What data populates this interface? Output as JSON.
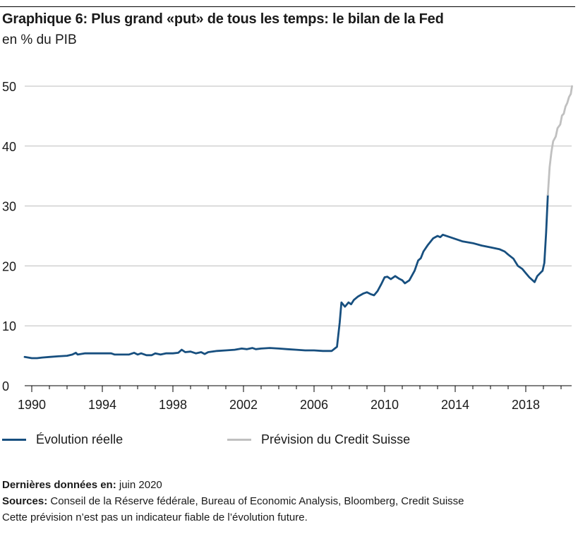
{
  "header": {
    "title": "Graphique 6: Plus grand «put» de tous les temps: le bilan de la Fed",
    "subtitle": "en % du PIB"
  },
  "legend": {
    "actual_label": "Évolution réelle",
    "forecast_label": "Prévision du Credit Suisse"
  },
  "footer": {
    "last_data_label": "Dernières données en:",
    "last_data_value": " juin 2020",
    "sources_label": "Sources:",
    "sources_value": " Conseil de la Réserve fédérale, Bureau of Economic Analysis, Bloomberg, Credit Suisse",
    "disclaimer": "Cette prévision n’est pas un indicateur fiable de l’évolution future."
  },
  "colors": {
    "actual": "#174f7f",
    "forecast": "#c0c0c0",
    "grid": "#bdbdbd"
  },
  "chart_data": {
    "type": "line",
    "title": "Graphique 6: Plus grand «put» de tous les temps: le bilan de la Fed",
    "ylabel": "en % du PIB",
    "xlim": [
      1989.6,
      2020.6
    ],
    "ylim": [
      0,
      50
    ],
    "yticks": [
      0,
      10,
      20,
      30,
      40,
      50
    ],
    "xticks": [
      "1990",
      "1994",
      "1998",
      "2002",
      "2006",
      "2010",
      "2014",
      "2018"
    ],
    "grid": "horizontal",
    "legend_position": "bottom",
    "series": [
      {
        "name": "Évolution réelle",
        "color": "#174f7f",
        "points": [
          [
            1989.6,
            4.8
          ],
          [
            1989.8,
            4.7
          ],
          [
            1990.0,
            4.6
          ],
          [
            1990.3,
            4.6
          ],
          [
            1990.6,
            4.7
          ],
          [
            1991.0,
            4.8
          ],
          [
            1991.5,
            4.9
          ],
          [
            1992.0,
            5.0
          ],
          [
            1992.3,
            5.2
          ],
          [
            1992.5,
            5.5
          ],
          [
            1992.6,
            5.2
          ],
          [
            1993.0,
            5.4
          ],
          [
            1993.5,
            5.4
          ],
          [
            1994.0,
            5.4
          ],
          [
            1994.5,
            5.4
          ],
          [
            1994.7,
            5.2
          ],
          [
            1995.0,
            5.2
          ],
          [
            1995.5,
            5.2
          ],
          [
            1995.8,
            5.5
          ],
          [
            1996.0,
            5.2
          ],
          [
            1996.2,
            5.4
          ],
          [
            1996.5,
            5.1
          ],
          [
            1996.8,
            5.1
          ],
          [
            1997.0,
            5.4
          ],
          [
            1997.3,
            5.2
          ],
          [
            1997.6,
            5.4
          ],
          [
            1998.0,
            5.4
          ],
          [
            1998.3,
            5.5
          ],
          [
            1998.5,
            6.0
          ],
          [
            1998.7,
            5.6
          ],
          [
            1999.0,
            5.7
          ],
          [
            1999.3,
            5.4
          ],
          [
            1999.6,
            5.6
          ],
          [
            1999.8,
            5.3
          ],
          [
            2000.0,
            5.6
          ],
          [
            2000.5,
            5.8
          ],
          [
            2001.0,
            5.9
          ],
          [
            2001.5,
            6.0
          ],
          [
            2001.9,
            6.2
          ],
          [
            2002.2,
            6.1
          ],
          [
            2002.5,
            6.3
          ],
          [
            2002.7,
            6.1
          ],
          [
            2003.0,
            6.2
          ],
          [
            2003.5,
            6.3
          ],
          [
            2004.0,
            6.2
          ],
          [
            2004.5,
            6.1
          ],
          [
            2005.0,
            6.0
          ],
          [
            2005.5,
            5.9
          ],
          [
            2006.0,
            5.9
          ],
          [
            2006.5,
            5.8
          ],
          [
            2007.0,
            5.8
          ],
          [
            2007.3,
            6.5
          ],
          [
            2007.45,
            10.5
          ],
          [
            2007.55,
            13.9
          ],
          [
            2007.75,
            13.2
          ],
          [
            2007.95,
            13.9
          ],
          [
            2008.1,
            13.6
          ],
          [
            2008.25,
            14.3
          ],
          [
            2008.5,
            14.9
          ],
          [
            2008.8,
            15.4
          ],
          [
            2009.0,
            15.6
          ],
          [
            2009.2,
            15.3
          ],
          [
            2009.4,
            15.1
          ],
          [
            2009.6,
            15.8
          ],
          [
            2009.8,
            16.9
          ],
          [
            2010.0,
            18.1
          ],
          [
            2010.15,
            18.2
          ],
          [
            2010.35,
            17.8
          ],
          [
            2010.6,
            18.3
          ],
          [
            2010.8,
            17.9
          ],
          [
            2011.0,
            17.6
          ],
          [
            2011.15,
            17.1
          ],
          [
            2011.4,
            17.6
          ],
          [
            2011.7,
            19.2
          ],
          [
            2011.9,
            20.9
          ],
          [
            2012.05,
            21.3
          ],
          [
            2012.2,
            22.4
          ],
          [
            2012.45,
            23.5
          ],
          [
            2012.75,
            24.6
          ],
          [
            2013.0,
            25.0
          ],
          [
            2013.15,
            24.8
          ],
          [
            2013.3,
            25.2
          ],
          [
            2013.6,
            24.9
          ],
          [
            2014.0,
            24.5
          ],
          [
            2014.4,
            24.1
          ],
          [
            2015.0,
            23.8
          ],
          [
            2015.5,
            23.4
          ],
          [
            2016.0,
            23.1
          ],
          [
            2016.5,
            22.8
          ],
          [
            2016.8,
            22.4
          ],
          [
            2017.0,
            21.9
          ],
          [
            2017.3,
            21.2
          ],
          [
            2017.55,
            20.0
          ],
          [
            2017.8,
            19.5
          ],
          [
            2018.0,
            18.8
          ],
          [
            2018.2,
            18.1
          ],
          [
            2018.5,
            17.3
          ],
          [
            2018.65,
            18.3
          ],
          [
            2018.85,
            18.9
          ],
          [
            2018.95,
            19.2
          ],
          [
            2019.05,
            20.5
          ],
          [
            2019.15,
            25.5
          ],
          [
            2019.25,
            31.9
          ]
        ]
      },
      {
        "name": "Prévision du Credit Suisse",
        "color": "#c0c0c0",
        "points": [
          [
            2019.25,
            31.9
          ],
          [
            2019.35,
            36.5
          ],
          [
            2019.45,
            39.0
          ],
          [
            2019.55,
            40.8
          ],
          [
            2019.7,
            41.6
          ],
          [
            2019.8,
            43.0
          ],
          [
            2019.95,
            43.6
          ],
          [
            2020.05,
            45.1
          ],
          [
            2020.15,
            45.4
          ],
          [
            2020.25,
            46.6
          ],
          [
            2020.35,
            47.2
          ],
          [
            2020.45,
            48.2
          ],
          [
            2020.55,
            48.7
          ],
          [
            2020.62,
            50.0
          ]
        ]
      }
    ]
  }
}
